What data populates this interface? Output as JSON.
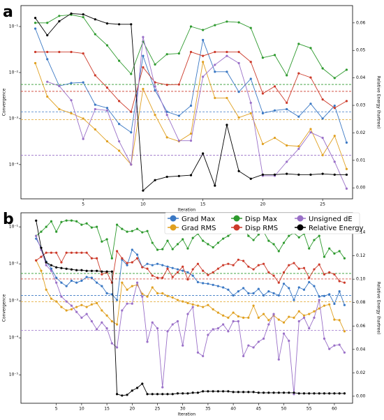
{
  "chart_data": [
    {
      "type": "line",
      "label": "a",
      "xlabel": "Iteration",
      "ylabel": "Convergence",
      "y2label": "Relative Energy (hartree)",
      "x": [
        1,
        2,
        3,
        4,
        5,
        6,
        7,
        8,
        9,
        10,
        11,
        12,
        13,
        14,
        15,
        16,
        17,
        18,
        19,
        20,
        21,
        22,
        23,
        24,
        25,
        26,
        27
      ],
      "xlim": [
        -0.2,
        27.5
      ],
      "xticks": [
        5,
        10,
        15,
        20,
        25
      ],
      "ylog": true,
      "ylim": [
        1.8e-05,
        0.285
      ],
      "yticks": [
        {
          "value": 0.1,
          "label": "10⁻¹"
        },
        {
          "value": 0.01,
          "label": "10⁻²"
        },
        {
          "value": 0.001,
          "label": "10⁻³"
        },
        {
          "value": 0.0001,
          "label": "10⁻⁴"
        }
      ],
      "y2lim": [
        -0.004,
        0.0663
      ],
      "y2ticks": [
        {
          "value": 0,
          "label": "0.00"
        },
        0.01,
        0.02,
        0.03,
        0.04,
        0.05,
        0.06
      ],
      "series": [
        {
          "color": "#3a78c4",
          "threshold": 0.0014,
          "values": [
            0.09,
            0.0195,
            0.0051,
            0.0059,
            0.0061,
            0.002,
            0.0017,
            0.00076,
            0.0005,
            0.023,
            0.0041,
            0.0014,
            0.00115,
            0.0019,
            0.051,
            0.0104,
            0.0104,
            0.0038,
            0.0073,
            0.0013,
            0.0015,
            0.0016,
            0.0011,
            0.0021,
            0.001,
            0.0019,
            0.0003
          ]
        },
        {
          "color": "#e0a020",
          "threshold": 0.00095,
          "values": [
            0.016,
            0.003,
            0.0016,
            0.0013,
            0.001,
            0.00058,
            0.00032,
            0.0002,
            0.0001,
            0.0044,
            0.0012,
            0.00039,
            0.00032,
            0.00047,
            0.017,
            0.0028,
            0.0028,
            0.00105,
            0.0013,
            0.00028,
            0.00038,
            0.00026,
            0.00025,
            0.00059,
            0.00016,
            0.00042,
            8e-05
          ]
        },
        {
          "color": "#2e9a2e",
          "threshold": 0.0055,
          "values": [
            0.12,
            0.12,
            0.17,
            0.18,
            0.16,
            0.068,
            0.039,
            0.018,
            0.0093,
            0.047,
            0.015,
            0.025,
            0.026,
            0.1,
            0.084,
            0.107,
            0.128,
            0.123,
            0.093,
            0.021,
            0.024,
            0.0087,
            0.042,
            0.034,
            0.0123,
            0.0076,
            0.0115
          ]
        },
        {
          "color": "#cc3a2a",
          "threshold": 0.0039,
          "values": [
            0.028,
            0.028,
            0.028,
            0.028,
            0.026,
            0.0087,
            0.0047,
            0.0024,
            0.0014,
            0.013,
            0.0061,
            0.0054,
            0.0055,
            0.028,
            0.023,
            0.028,
            0.028,
            0.028,
            0.017,
            0.0035,
            0.005,
            0.0022,
            0.0096,
            0.0078,
            0.0026,
            0.0017,
            0.0024
          ]
        },
        {
          "color": "#9a70c8",
          "threshold": 0.00016,
          "values": [
            null,
            0.0063,
            0.0051,
            0.0025,
            0.00036,
            0.0016,
            0.0015,
            0.00032,
            0.0001,
            0.059,
            0.005,
            0.0012,
            0.00033,
            0.00033,
            0.0081,
            0.0147,
            0.023,
            0.016,
            0.0022,
            5.7e-05,
            5.7e-05,
            0.000115,
            0.00022,
            0.0005,
            0.00038,
            0.000115,
            3e-05
          ]
        },
        {
          "color": "#000000",
          "axis": "y2",
          "values": [
            0.0618,
            0.0555,
            0.0606,
            0.0634,
            0.0631,
            0.0613,
            0.0598,
            0.0595,
            0.0595,
            -0.001,
            0.0028,
            0.004,
            0.0043,
            0.0046,
            0.0125,
            0.0008,
            0.0229,
            0.0061,
            0.0033,
            0.0048,
            0.0048,
            0.0051,
            0.0048,
            0.0048,
            0.0051,
            0.0048,
            0.0048
          ]
        }
      ]
    },
    {
      "type": "line",
      "label": "b",
      "xlabel": "Iteration",
      "ylabel": "Convergence",
      "y2label": "Relative Energy (hartree)",
      "legend": "upper right",
      "x": [
        1,
        2,
        3,
        4,
        5,
        6,
        7,
        8,
        9,
        10,
        11,
        12,
        13,
        14,
        15,
        16,
        17,
        18,
        19,
        20,
        21,
        22,
        23,
        24,
        25,
        26,
        27,
        28,
        29,
        30,
        31,
        32,
        33,
        34,
        35,
        36,
        37,
        38,
        39,
        40,
        41,
        42,
        43,
        44,
        45,
        46,
        47,
        48,
        49,
        50,
        51,
        52,
        53,
        54,
        55,
        56,
        57,
        58,
        59,
        60,
        61,
        62
      ],
      "xlim": [
        -2,
        63.6
      ],
      "xticks": [
        5,
        10,
        15,
        20,
        25,
        30,
        35,
        40,
        45,
        50,
        55,
        60
      ],
      "ylog": true,
      "ylim": [
        1.7e-06,
        0.24
      ],
      "yticks": [
        {
          "value": 0.1,
          "label": "10⁻¹"
        },
        {
          "value": 0.01,
          "label": "10⁻²"
        },
        {
          "value": 0.001,
          "label": "10⁻³"
        },
        {
          "value": 0.0001,
          "label": "10⁻⁴"
        },
        {
          "value": 1e-05,
          "label": "10⁻⁵"
        }
      ],
      "y2lim": [
        -0.006,
        0.1567
      ],
      "y2ticks": [
        {
          "value": 0,
          "label": "0.00"
        },
        0.02,
        0.04,
        0.06,
        0.08,
        {
          "value": 0.1,
          "label": "0.10"
        },
        0.12,
        0.14
      ],
      "series": [
        {
          "name": "Grad Max",
          "color": "#3a78c4",
          "threshold": 0.0014,
          "values": [
            0.048,
            0.027,
            0.0114,
            0.0074,
            0.0042,
            0.0031,
            0.0025,
            0.0035,
            0.0031,
            0.0035,
            0.0044,
            0.0042,
            0.0031,
            0.0025,
            0.0016,
            0.0015,
            0.00105,
            0.0129,
            0.0092,
            0.024,
            0.0177,
            0.0081,
            0.01,
            0.0092,
            0.01,
            0.0092,
            0.0084,
            0.0077,
            0.0071,
            0.0065,
            0.0059,
            0.0048,
            0.0032,
            0.003,
            0.0029,
            0.0027,
            0.0025,
            0.0023,
            0.002,
            0.0014,
            0.0018,
            0.0022,
            0.0016,
            0.0016,
            0.0021,
            0.0014,
            0.0018,
            0.0016,
            0.0014,
            0.0029,
            0.0022,
            0.00105,
            0.0023,
            0.002,
            0.0032,
            0.0025,
            0.0013,
            0.00135,
            0.0015,
            0.00083,
            0.0018,
            0.00077
          ]
        },
        {
          "name": "Grad RMS",
          "color": "#e0a020",
          "threshold": 0.00095,
          "values": [
            0.0124,
            0.0065,
            0.002,
            0.00114,
            0.00096,
            0.00068,
            0.00055,
            0.00059,
            0.00068,
            0.00077,
            0.00068,
            0.0008,
            0.00087,
            0.00055,
            0.0004,
            0.00028,
            0.00023,
            0.0031,
            0.002,
            0.0025,
            0.0027,
            0.00155,
            0.0013,
            0.0023,
            0.0016,
            0.0016,
            0.00135,
            0.00123,
            0.00105,
            0.00096,
            0.00087,
            0.0008,
            0.00074,
            0.00068,
            0.00077,
            0.00059,
            0.00048,
            0.0004,
            0.00035,
            0.00048,
            0.00038,
            0.00035,
            0.00035,
            0.00074,
            0.00035,
            0.00044,
            0.0003,
            0.0004,
            0.00031,
            0.00026,
            0.00037,
            0.00035,
            0.00052,
            0.0004,
            0.00044,
            0.00052,
            0.00062,
            0.00074,
            0.0008,
            0.00031,
            0.0003,
            0.00015
          ]
        },
        {
          "name": "Disp Max",
          "color": "#2e9a2e",
          "threshold": 0.0055,
          "values": [
            0.057,
            0.074,
            0.1,
            0.141,
            0.074,
            0.135,
            0.148,
            0.148,
            0.141,
            0.114,
            0.124,
            0.096,
            0.1,
            0.04,
            0.046,
            0.0141,
            0.114,
            0.088,
            0.074,
            0.077,
            0.088,
            0.071,
            0.077,
            0.037,
            0.024,
            0.025,
            0.042,
            0.025,
            0.034,
            0.046,
            0.026,
            0.05,
            0.065,
            0.042,
            0.034,
            0.028,
            0.037,
            0.048,
            0.057,
            0.071,
            0.081,
            0.1,
            0.057,
            0.044,
            0.062,
            0.074,
            0.042,
            0.034,
            0.022,
            0.037,
            0.057,
            0.068,
            0.052,
            0.065,
            0.026,
            0.044,
            0.057,
            0.0155,
            0.026,
            0.019,
            0.022,
            0.0141
          ]
        },
        {
          "name": "Disp RMS",
          "color": "#cc3a2a",
          "threshold": 0.0039,
          "values": [
            0.0124,
            0.0155,
            0.02,
            0.02,
            0.02,
            0.011,
            0.02,
            0.02,
            0.02,
            0.02,
            0.02,
            0.0141,
            0.0141,
            0.0052,
            0.0059,
            0.0031,
            0.022,
            0.0141,
            0.0105,
            0.011,
            0.0141,
            0.0081,
            0.0074,
            0.0048,
            0.0042,
            0.0042,
            0.0074,
            0.0044,
            0.0059,
            0.0084,
            0.0038,
            0.0071,
            0.01,
            0.0065,
            0.005,
            0.0059,
            0.0074,
            0.0092,
            0.01,
            0.0092,
            0.0129,
            0.012,
            0.0084,
            0.0071,
            0.0092,
            0.01,
            0.0059,
            0.0048,
            0.0031,
            0.0059,
            0.0092,
            0.0105,
            0.0074,
            0.0077,
            0.0042,
            0.0071,
            0.0096,
            0.0052,
            0.0059,
            0.0052,
            0.0034,
            0.0031
          ]
        },
        {
          "name": "Unsigned dE",
          "color": "#9a70c8",
          "threshold": 0.00016,
          "values": [
            0.057,
            0.024,
            0.0092,
            0.0065,
            0.0031,
            0.0013,
            0.00096,
            0.00074,
            0.0005,
            0.00035,
            0.00044,
            0.00028,
            0.00017,
            0.00026,
            0.00018,
            7.1e-05,
            5.5e-05,
            0.00055,
            0.00084,
            0.00084,
            0.0031,
            0.0013,
            7.8e-05,
            0.00026,
            0.00018,
            4.6e-06,
            0.00015,
            0.00023,
            0.00028,
            6.2e-05,
            0.00044,
            0.00068,
            4e-05,
            3.2e-05,
            0.00012,
            0.00017,
            0.00018,
            0.00023,
            0.00015,
            0.00028,
            0.00028,
            3.2e-05,
            6.2e-05,
            5.5e-05,
            7.8e-05,
            9.5e-05,
            0.00023,
            0.00044,
            2.6e-05,
            0.00013,
            8.3e-05,
            3e-06,
            0.00028,
            0.00035,
            0.00018,
            0.00035,
            0.00105,
            9.5e-05,
            5e-05,
            6.2e-05,
            6.5e-05,
            4e-05
          ]
        },
        {
          "name": "Relative Energy",
          "color": "#000000",
          "axis": "y2",
          "values": [
            0.15,
            0.1268,
            0.1143,
            0.1119,
            0.1101,
            0.1095,
            0.1089,
            0.1083,
            0.1077,
            0.1077,
            0.1071,
            0.1071,
            0.1071,
            0.1065,
            0.1065,
            0.1065,
            0.0018,
            0.0006,
            0.0012,
            0.0048,
            0.0071,
            0.0107,
            0.0018,
            0.0018,
            0.0018,
            0.0018,
            0.0018,
            0.0018,
            0.0024,
            0.0024,
            0.0024,
            0.003,
            0.003,
            0.0042,
            0.0042,
            0.0042,
            0.0042,
            0.0042,
            0.0042,
            0.0036,
            0.0036,
            0.0036,
            0.0036,
            0.0036,
            0.003,
            0.003,
            0.003,
            0.003,
            0.003,
            0.003,
            0.003,
            0.003,
            0.0024,
            0.0024,
            0.0024,
            0.0024,
            0.0024,
            0.0024,
            0.0024,
            0.0024,
            0.0024,
            0.0024
          ]
        }
      ]
    }
  ]
}
